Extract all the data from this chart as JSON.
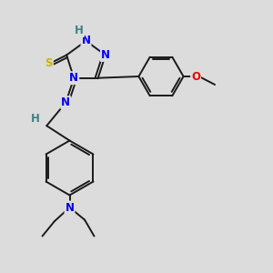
{
  "background_color": "#dcdcdc",
  "bond_color": "#1a1a1a",
  "atom_colors": {
    "N": "#0000ee",
    "S": "#c8b400",
    "O": "#ee0000",
    "H": "#408080",
    "C": "#1a1a1a"
  },
  "figsize": [
    3.0,
    3.0
  ],
  "dpi": 100
}
